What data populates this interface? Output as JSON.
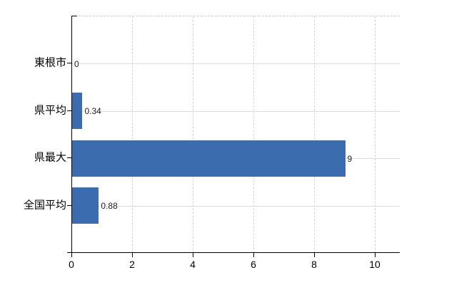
{
  "chart_data": {
    "type": "bar",
    "orientation": "horizontal",
    "title": "",
    "xlabel": "",
    "ylabel": "",
    "categories": [
      "東根市",
      "県平均",
      "県最大",
      "全国平均"
    ],
    "values": [
      0,
      0.34,
      9,
      0.88
    ],
    "value_labels": [
      "0",
      "0.34",
      "9",
      "0.88"
    ],
    "x_ticks": [
      0,
      2,
      4,
      6,
      8,
      10
    ],
    "x_tick_labels": [
      "0",
      "2",
      "4",
      "6",
      "8",
      "10"
    ],
    "xlim": [
      0,
      10.8
    ],
    "grid": "on",
    "legend": "none",
    "bar_color": "#3A6CAE"
  },
  "colors": {
    "background": "#FFFFFF",
    "bar": "#3A6CAE",
    "grid_horizontal": "#D9DDD9",
    "grid_vertical": "#D4D4D4",
    "plot_top_border": "#C9C9C9",
    "axis": "#000000",
    "text": "#000000",
    "value_label_text": "#1A1A1A"
  }
}
